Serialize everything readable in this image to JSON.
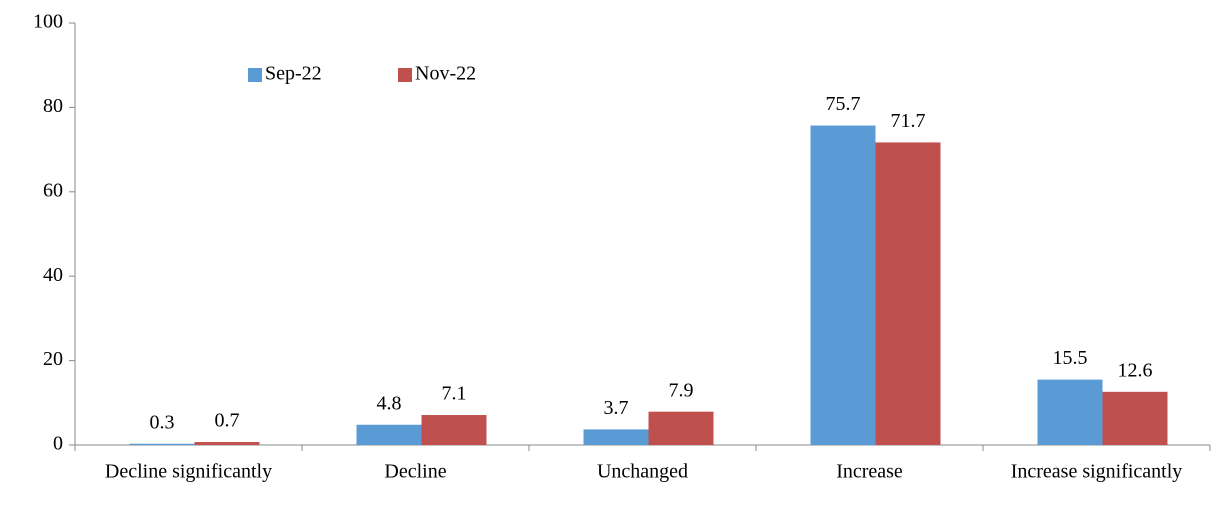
{
  "chart_data": {
    "type": "bar",
    "categories": [
      "Decline significantly",
      "Decline",
      "Unchanged",
      "Increase",
      "Increase significantly"
    ],
    "series": [
      {
        "name": "Sep-22",
        "color": "#5b9bd5",
        "values": [
          0.3,
          4.8,
          3.7,
          75.7,
          15.5
        ]
      },
      {
        "name": "Nov-22",
        "color": "#c0504d",
        "values": [
          0.7,
          7.1,
          7.9,
          71.7,
          12.6
        ]
      }
    ],
    "ylim": [
      0,
      100
    ],
    "yticks": [
      0,
      20,
      40,
      60,
      80,
      100
    ],
    "grid": false,
    "legend": "top-left"
  }
}
